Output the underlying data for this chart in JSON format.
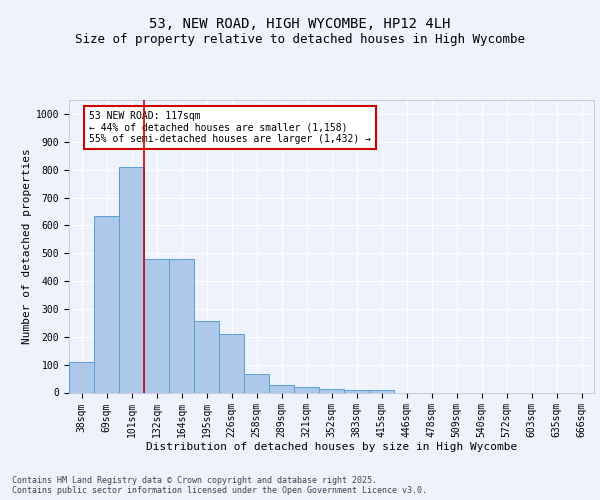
{
  "title1": "53, NEW ROAD, HIGH WYCOMBE, HP12 4LH",
  "title2": "Size of property relative to detached houses in High Wycombe",
  "xlabel": "Distribution of detached houses by size in High Wycombe",
  "ylabel": "Number of detached properties",
  "categories": [
    "38sqm",
    "69sqm",
    "101sqm",
    "132sqm",
    "164sqm",
    "195sqm",
    "226sqm",
    "258sqm",
    "289sqm",
    "321sqm",
    "352sqm",
    "383sqm",
    "415sqm",
    "446sqm",
    "478sqm",
    "509sqm",
    "540sqm",
    "572sqm",
    "603sqm",
    "635sqm",
    "666sqm"
  ],
  "values": [
    110,
    635,
    810,
    480,
    480,
    258,
    210,
    65,
    27,
    20,
    13,
    10,
    8,
    0,
    0,
    0,
    0,
    0,
    0,
    0,
    0
  ],
  "bar_color": "#adc8e8",
  "bar_edge_color": "#5a9fd4",
  "vline_x": 2.5,
  "vline_color": "#cc0000",
  "annotation_text": "53 NEW ROAD: 117sqm\n← 44% of detached houses are smaller (1,158)\n55% of semi-detached houses are larger (1,432) →",
  "annotation_box_color": "#cc0000",
  "ylim": [
    0,
    1050
  ],
  "yticks": [
    0,
    100,
    200,
    300,
    400,
    500,
    600,
    700,
    800,
    900,
    1000
  ],
  "background_color": "#eef2fc",
  "grid_color": "#ffffff",
  "footer": "Contains HM Land Registry data © Crown copyright and database right 2025.\nContains public sector information licensed under the Open Government Licence v3.0.",
  "title1_fontsize": 10,
  "title2_fontsize": 9,
  "xlabel_fontsize": 8,
  "ylabel_fontsize": 8,
  "tick_fontsize": 7,
  "annotation_fontsize": 7,
  "footer_fontsize": 6
}
